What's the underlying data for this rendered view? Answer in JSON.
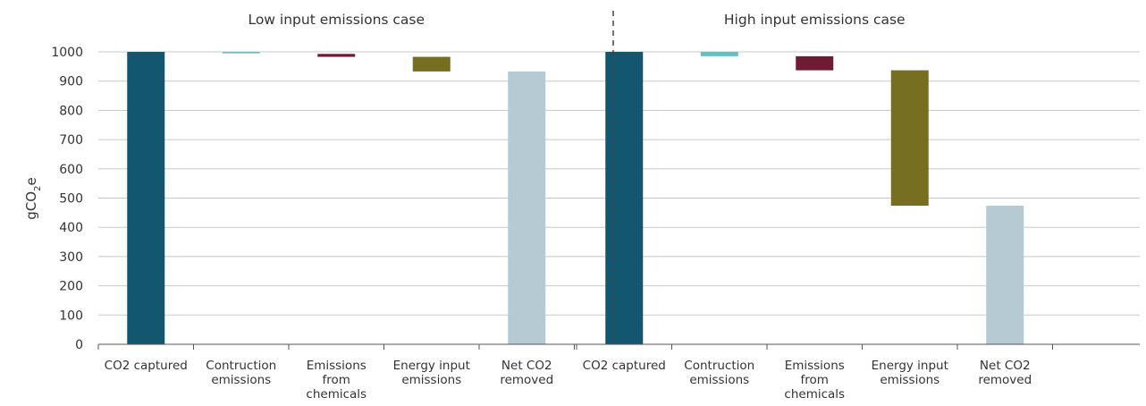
{
  "chart_data": {
    "type": "bar",
    "subtype": "waterfall",
    "ylabel": "gCO",
    "ylabel_subscript": "2",
    "ylabel_suffix": "e",
    "ylim": [
      0,
      1000
    ],
    "y_ticks": [
      0,
      100,
      200,
      300,
      400,
      500,
      600,
      700,
      800,
      900,
      1000
    ],
    "grid": true,
    "panels": [
      {
        "title": "Low input emissions case",
        "categories": [
          [
            "CO2 captured"
          ],
          [
            "Contruction",
            "emissions"
          ],
          [
            "Emissions",
            "from",
            "chemicals"
          ],
          [
            "Energy input",
            "emissions"
          ],
          [
            "Net CO2",
            "removed"
          ]
        ],
        "bars": [
          {
            "base": 0,
            "top": 1000,
            "color": "#13566f"
          },
          {
            "base": 995,
            "top": 1000,
            "color": "#6cbcc8"
          },
          {
            "base": 983,
            "top": 993,
            "color": "#6e1b33"
          },
          {
            "base": 933,
            "top": 983,
            "color": "#766e20"
          },
          {
            "base": 0,
            "top": 933,
            "color": "#b6cad3"
          }
        ]
      },
      {
        "title": "High input emissions case",
        "categories": [
          [
            "CO2 captured"
          ],
          [
            "Contruction",
            "emissions"
          ],
          [
            "Emissions",
            "from",
            "chemicals"
          ],
          [
            "Energy input",
            "emissions"
          ],
          [
            "Net CO2",
            "removed"
          ]
        ],
        "bars": [
          {
            "base": 0,
            "top": 1000,
            "color": "#13566f"
          },
          {
            "base": 985,
            "top": 1000,
            "color": "#6cbcc8"
          },
          {
            "base": 937,
            "top": 985,
            "color": "#6e1b33"
          },
          {
            "base": 474,
            "top": 937,
            "color": "#766e20"
          },
          {
            "base": 0,
            "top": 474,
            "color": "#b6cad3"
          }
        ]
      }
    ]
  }
}
